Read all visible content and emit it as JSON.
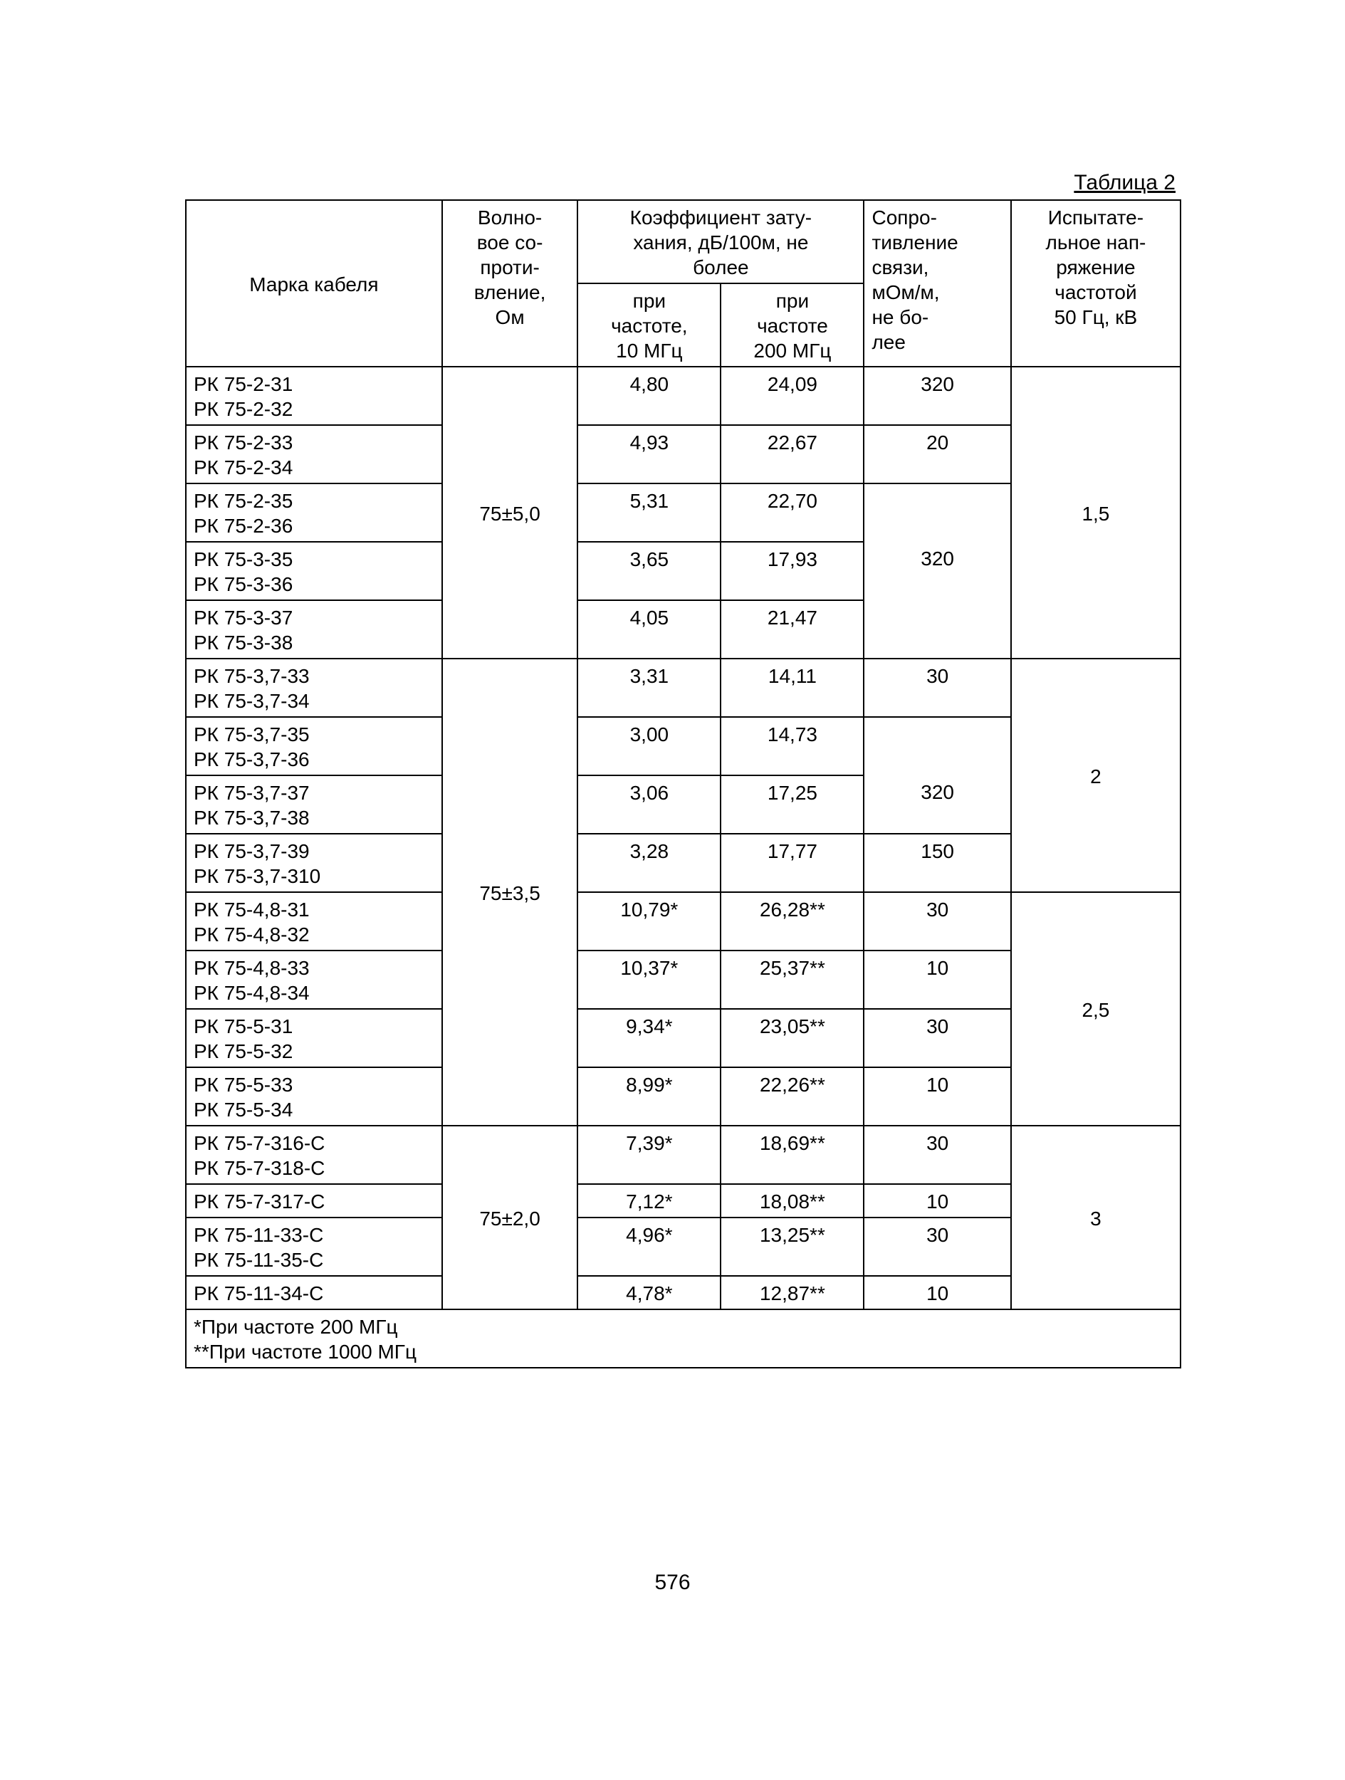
{
  "title": "Таблица 2",
  "pageNumber": "576",
  "headers": {
    "mark": "Марка кабеля",
    "impedance": "Волно-\nвое со-\nпроти-\nвление,\nОм",
    "attenuation_group": "Коэффициент зату-\nхания, дБ/100м, не\nболее",
    "att_10": "при\nчастоте,\n10 МГц",
    "att_200": "при\nчастоте\n200 МГц",
    "resistance": "Сопро-\nтивление\nсвязи,\nмОм/м,\nне бо-\nлее",
    "voltage": "Испытате-\nльное нап-\nряжение\nчастотой\n50 Гц, кВ"
  },
  "footnote1": "*При частоте 200 МГц",
  "footnote2": "**При частоте 1000 МГц",
  "groups": [
    {
      "impedance": "75±5,0",
      "voltage": "1,5",
      "rows": [
        {
          "marks": [
            "РК 75-2-31",
            "РК 75-2-32"
          ],
          "a10": "4,80",
          "a200": "24,09",
          "res": "320"
        },
        {
          "marks": [
            "РК 75-2-33",
            "РК 75-2-34"
          ],
          "a10": "4,93",
          "a200": "22,67",
          "res": "20"
        },
        {
          "marks": [
            "РК 75-2-35",
            "РК 75-2-36"
          ],
          "a10": "5,31",
          "a200": "22,70",
          "res": ""
        },
        {
          "marks": [
            "РК 75-3-35",
            "РК 75-3-36"
          ],
          "a10": "3,65",
          "a200": "17,93",
          "res": "320"
        },
        {
          "marks": [
            "РК 75-3-37",
            "РК 75-3-38"
          ],
          "a10": "4,05",
          "a200": "21,47",
          "res": ""
        }
      ]
    },
    {
      "impedance": "75±3,5",
      "voltage_parts": [
        "2",
        "2,5"
      ],
      "rows": [
        {
          "marks": [
            "РК 75-3,7-33",
            "РК 75-3,7-34"
          ],
          "a10": "3,31",
          "a200": "14,11",
          "res": "30"
        },
        {
          "marks": [
            "РК 75-3,7-35",
            "РК 75-3,7-36"
          ],
          "a10": "3,00",
          "a200": "14,73",
          "res": ""
        },
        {
          "marks": [
            "РК 75-3,7-37",
            "РК 75-3,7-38"
          ],
          "a10": "3,06",
          "a200": "17,25",
          "res": "320"
        },
        {
          "marks": [
            "РК 75-3,7-39",
            "РК 75-3,7-310"
          ],
          "a10": "3,28",
          "a200": "17,77",
          "res": "150"
        },
        {
          "marks": [
            "РК 75-4,8-31",
            "РК 75-4,8-32"
          ],
          "a10": "10,79*",
          "a200": "26,28**",
          "res": "30"
        },
        {
          "marks": [
            "РК 75-4,8-33",
            "РК 75-4,8-34"
          ],
          "a10": "10,37*",
          "a200": "25,37**",
          "res": "10"
        },
        {
          "marks": [
            "РК 75-5-31",
            "РК 75-5-32"
          ],
          "a10": "9,34*",
          "a200": "23,05**",
          "res": "30"
        },
        {
          "marks": [
            "РК 75-5-33",
            "РК 75-5-34"
          ],
          "a10": "8,99*",
          "a200": "22,26**",
          "res": "10"
        }
      ]
    },
    {
      "impedance": "75±2,0",
      "voltage": "3",
      "rows": [
        {
          "marks": [
            "РК 75-7-316-С",
            "РК 75-7-318-С"
          ],
          "a10": "7,39*",
          "a200": "18,69**",
          "res": "30"
        },
        {
          "marks": [
            "РК 75-7-317-С"
          ],
          "a10": "7,12*",
          "a200": "18,08**",
          "res": "10"
        },
        {
          "marks": [
            "РК 75-11-33-С",
            "РК 75-11-35-С"
          ],
          "a10": "4,96*",
          "a200": "13,25**",
          "res": "30"
        },
        {
          "marks": [
            "РК 75-11-34-С"
          ],
          "a10": "4,78*",
          "a200": "12,87**",
          "res": "10"
        }
      ]
    }
  ]
}
